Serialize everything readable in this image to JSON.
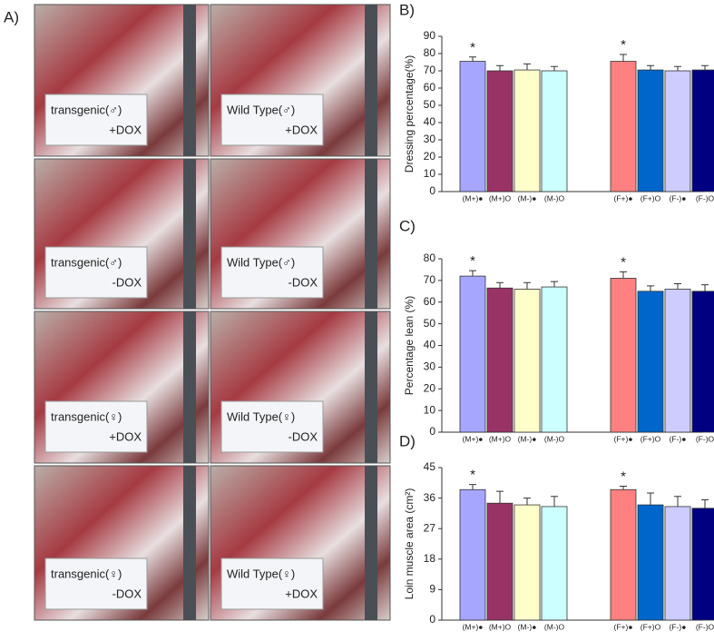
{
  "panel_a": {
    "label": "A)",
    "photos": [
      {
        "line1": "transgenic(♂)",
        "line2": "+DOX"
      },
      {
        "line1": "Wild Type(♂)",
        "line2": "+DOX"
      },
      {
        "line1": "transgenic(♂)",
        "line2": "-DOX"
      },
      {
        "line1": "Wild Type(♂)",
        "line2": "-DOX"
      },
      {
        "line1": "transgenic(♀)",
        "line2": "+DOX"
      },
      {
        "line1": "Wild Type(♀)",
        "line2": "-DOX"
      },
      {
        "line1": "transgenic(♀)",
        "line2": "-DOX"
      },
      {
        "line1": "Wild Type(♀)",
        "line2": "+DOX"
      }
    ]
  },
  "chart_data": [
    {
      "type": "bar",
      "panel": "B)",
      "ylabel": "Dressing percentage(%)",
      "categories": [
        "(M+)●",
        "(M+)O",
        "(M-)●",
        "(M-)O",
        "(F+)●",
        "(F+)O",
        "(F-)●",
        "(F-)O"
      ],
      "values": [
        75.5,
        70,
        70.5,
        70,
        75.5,
        70.5,
        70,
        70.5
      ],
      "errors": [
        2.5,
        3,
        3.5,
        2.5,
        4,
        2.5,
        2.5,
        2.5
      ],
      "colors": [
        "#a6a6ff",
        "#993366",
        "#ffffcc",
        "#ccffff",
        "#ff8080",
        "#0066cc",
        "#ccccff",
        "#000080"
      ],
      "ylim": [
        0,
        90
      ],
      "yticks": [
        0,
        10,
        20,
        30,
        40,
        50,
        60,
        70,
        80,
        90
      ],
      "annotations": [
        {
          "text": "*",
          "x": 0
        },
        {
          "text": "*",
          "x": 4
        }
      ]
    },
    {
      "type": "bar",
      "panel": "C)",
      "ylabel": "Percentage lean (%)",
      "categories": [
        "(M+)●",
        "(M+)O",
        "(M-)●",
        "(M-)O",
        "(F+)●",
        "(F+)O",
        "(F-)●",
        "(F-)O"
      ],
      "values": [
        72,
        66.5,
        66,
        67,
        71,
        65,
        66,
        65
      ],
      "errors": [
        2.5,
        2.5,
        3,
        2.5,
        3,
        2.5,
        2.5,
        3
      ],
      "colors": [
        "#a6a6ff",
        "#993366",
        "#ffffcc",
        "#ccffff",
        "#ff8080",
        "#0066cc",
        "#ccccff",
        "#000080"
      ],
      "ylim": [
        0,
        80
      ],
      "yticks": [
        0,
        10,
        20,
        30,
        40,
        50,
        60,
        70,
        80
      ],
      "annotations": [
        {
          "text": "*",
          "x": 0
        },
        {
          "text": "*",
          "x": 4
        }
      ]
    },
    {
      "type": "bar",
      "panel": "D)",
      "ylabel": "Loin muscle area (cm²)",
      "categories": [
        "(M+)●",
        "(M+)O",
        "(M-)●",
        "(M-)O",
        "(F+)●",
        "(F+)O",
        "(F-)●",
        "(F-)O"
      ],
      "values": [
        38.5,
        34.5,
        34,
        33.5,
        38.5,
        34,
        33.5,
        33
      ],
      "errors": [
        1.5,
        3.5,
        2,
        3,
        1,
        3.5,
        3,
        2.5
      ],
      "colors": [
        "#a6a6ff",
        "#993366",
        "#ffffcc",
        "#ccffff",
        "#ff8080",
        "#0066cc",
        "#ccccff",
        "#000080"
      ],
      "ylim": [
        0,
        45
      ],
      "yticks": [
        0,
        9,
        18,
        27,
        36,
        45
      ],
      "annotations": [
        {
          "text": "*",
          "x": 0
        },
        {
          "text": "*",
          "x": 4
        }
      ]
    }
  ]
}
